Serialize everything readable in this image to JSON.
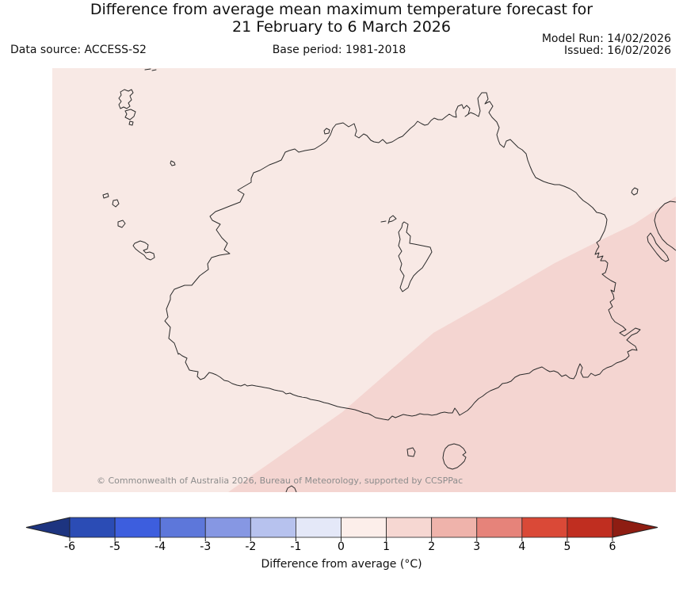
{
  "title": {
    "line1": "Difference from average mean maximum temperature forecast for",
    "line2": "21 February to 6 March 2026"
  },
  "header": {
    "data_source": "Data source: ACCESS-S2",
    "base_period": "Base period: 1981-2018",
    "model_run": "Model Run: 14/02/2026",
    "issued": "Issued: 16/02/2026"
  },
  "map": {
    "copyright": "© Commonwealth of Australia 2026, Bureau of Meteorology, supported by CCSPPac",
    "colors": {
      "sea_light": "#f8e9e5",
      "sea_dark": "#f4d5d1",
      "coastline": "#2b2b2b"
    },
    "visible_anomaly_regions": [
      {
        "band": "0 to +1 °C",
        "color": "#fceeea",
        "area": "northwest of diagonal contour"
      },
      {
        "band": "+1 to +2 °C",
        "color": "#f6d7d2",
        "area": "southeast of diagonal contour"
      }
    ]
  },
  "colorbar": {
    "label": "Difference from average (°C)",
    "ticks": [
      "-6",
      "-5",
      "-4",
      "-3",
      "-2",
      "-1",
      "0",
      "1",
      "2",
      "3",
      "4",
      "5",
      "6"
    ],
    "segment_colors": [
      "#2b4cb5",
      "#3d5ede",
      "#5d77da",
      "#8697e3",
      "#b7c2ee",
      "#e4e8f8",
      "#fceeea",
      "#f6d7d2",
      "#efb3ab",
      "#e6837a",
      "#da4937",
      "#c02e20"
    ],
    "left_arrow_color": "#1d3480",
    "right_arrow_color": "#8e1d12",
    "outline_color": "#222222"
  },
  "chart_data": {
    "type": "heatmap",
    "title": "Difference from average mean maximum temperature forecast, 21 February to 6 March 2026",
    "legend_title": "Difference from average (°C)",
    "scale_ticks": [
      -6,
      -5,
      -4,
      -3,
      -2,
      -1,
      0,
      1,
      2,
      3,
      4,
      5,
      6
    ],
    "scale_colors": [
      "#2b4cb5",
      "#3d5ede",
      "#5d77da",
      "#8697e3",
      "#b7c2ee",
      "#e4e8f8",
      "#fceeea",
      "#f6d7d2",
      "#efb3ab",
      "#e6837a",
      "#da4937",
      "#c02e20"
    ],
    "depicted_values": [
      {
        "region": "northwest portion of map",
        "anomaly_c": "0 to +1"
      },
      {
        "region": "southeast portion of map",
        "anomaly_c": "+1 to +2"
      }
    ]
  }
}
